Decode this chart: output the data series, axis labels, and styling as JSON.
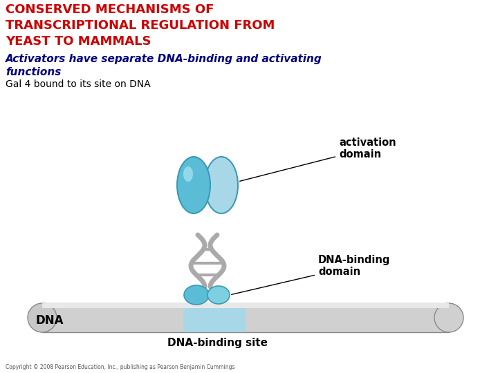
{
  "title_line1": "CONSERVED MECHANISMS OF",
  "title_line2": "TRANSCRIPTIONAL REGULATION FROM",
  "title_line3": "YEAST TO MAMMALS",
  "title_color": "#cc0000",
  "subtitle": "Activators have separate DNA-binding and activating\nfunctions",
  "subtitle_color": "#000080",
  "caption": "Gal 4 bound to its site on DNA",
  "caption_color": "#000000",
  "label_activation": "activation\ndomain",
  "label_dna_binding": "DNA-binding\ndomain",
  "label_dna": "DNA",
  "label_dna_site": "DNA-binding site",
  "label_color": "#000000",
  "blue_color": "#5bbcd6",
  "blue_light": "#a8d8e8",
  "blue_mid": "#7ecfe0",
  "gray_color": "#aaaaaa",
  "gray_light": "#d0d0d0",
  "gray_dark": "#888888",
  "copyright": "Copyright © 2008 Pearson Education, Inc., publishing as Pearson Benjamin Cummings",
  "bg_color": "#ffffff"
}
